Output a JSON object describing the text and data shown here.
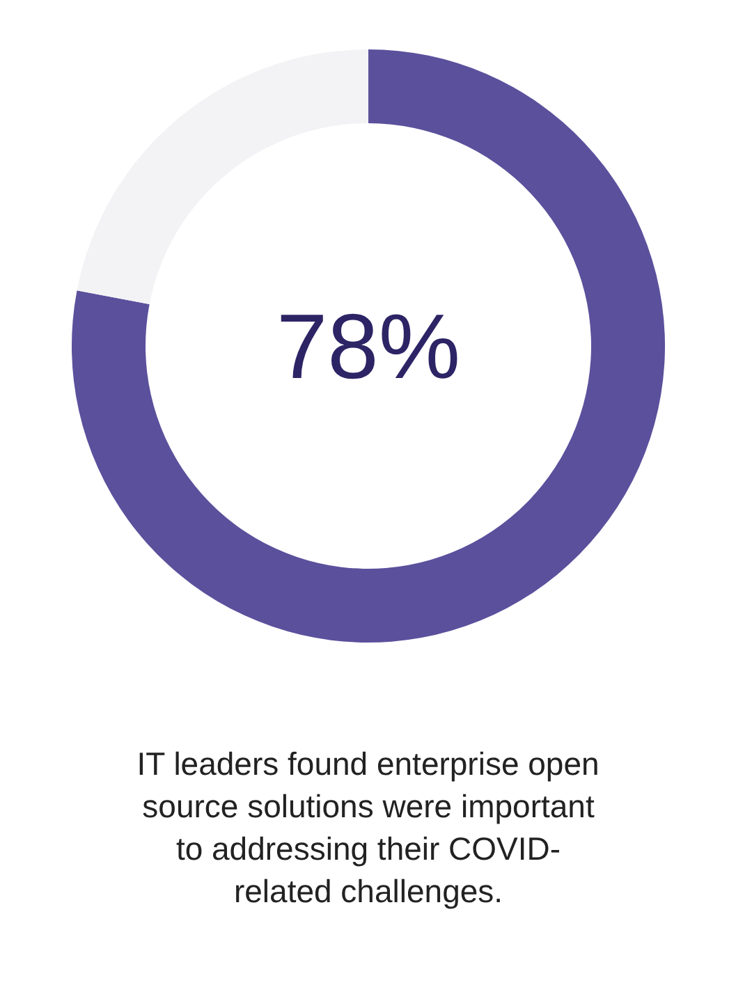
{
  "chart_data": {
    "type": "donut",
    "categories": [
      null,
      null
    ],
    "values": [
      78,
      22
    ],
    "colors": [
      "#5b509c",
      "#f3f3f5"
    ],
    "annotations": [
      "78%",
      "IT leaders found enterprise open source solutions were important to addressing their COVID-related challenges."
    ],
    "grid": false
  }
}
